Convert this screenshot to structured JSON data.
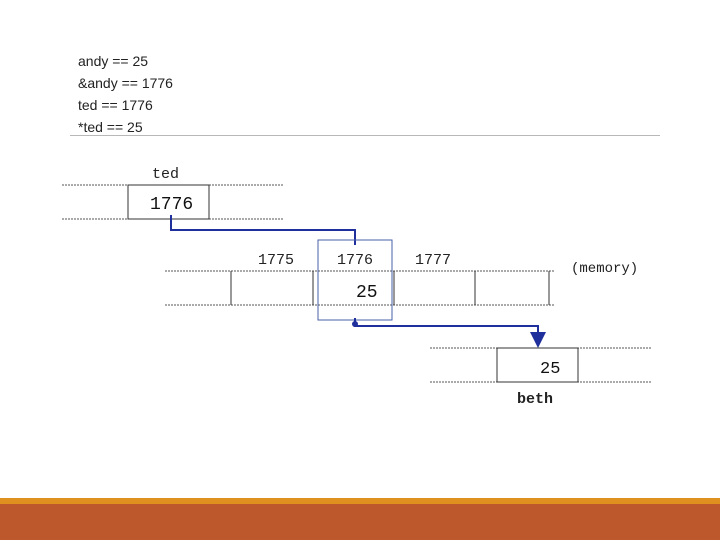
{
  "code_lines": [
    "andy == 25",
    "&andy == 1776",
    "ted == 1776",
    "*ted == 25"
  ],
  "diagram": {
    "ted": {
      "name": "ted",
      "value": "1776"
    },
    "memory": {
      "label": "(memory)",
      "addresses": [
        "1775",
        "1776",
        "1777"
      ],
      "highlighted_value": "25"
    },
    "beth": {
      "name": "beth",
      "value": "25"
    },
    "arrow_color": "#1f2f9c",
    "highlight_border_color": "#4a5fa8"
  },
  "theme": {
    "footer_stripe": "#e0901e",
    "footer_bar": "#bd582c"
  }
}
